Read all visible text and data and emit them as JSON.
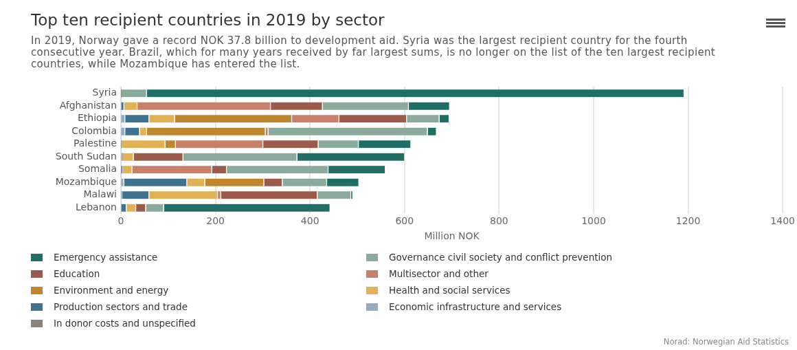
{
  "chart_data": {
    "type": "bar",
    "orientation": "horizontal",
    "stacked": true,
    "title": "Top ten recipient countries in 2019 by sector",
    "subtitle": "In 2019, Norway gave a record NOK 37.8 billion to development aid. Syria was the largest recipient country for the fourth consecutive year. Brazil, which for many years received by far largest sums, is no longer on the list of the ten largest recipient countries, while Mozambique has entered the list.",
    "xlabel": "Million NOK",
    "categories": [
      "Syria",
      "Afghanistan",
      "Ethiopia",
      "Colombia",
      "Palestine",
      "South Sudan",
      "Somalia",
      "Mozambique",
      "Malawi",
      "Lebanon"
    ],
    "series": [
      {
        "name": "In donor costs and unspecified",
        "color": "#8a8478",
        "values": [
          0,
          0,
          0,
          0,
          0,
          0,
          0,
          0,
          0,
          0
        ]
      },
      {
        "name": "Economic infrastructure and services",
        "color": "#8db0c8",
        "values": [
          0,
          0,
          9,
          9,
          0,
          3,
          0,
          7,
          3,
          0
        ]
      },
      {
        "name": "Production sectors and trade",
        "color": "#3f7290",
        "values": [
          0,
          7,
          51,
          31,
          0,
          0,
          4,
          133,
          57,
          12
        ]
      },
      {
        "name": "Health and social services",
        "color": "#e2b154",
        "values": [
          0,
          28,
          54,
          15,
          94,
          24,
          20,
          38,
          145,
          20
        ]
      },
      {
        "name": "Environment and energy",
        "color": "#c0862e",
        "values": [
          0,
          0,
          248,
          251,
          22,
          0,
          0,
          125,
          0,
          0
        ]
      },
      {
        "name": "Multisector and other",
        "color": "#c9806b",
        "values": [
          0,
          282,
          100,
          6,
          185,
          0,
          169,
          0,
          7,
          0
        ]
      },
      {
        "name": "Education",
        "color": "#9c5a4a",
        "values": [
          0,
          110,
          143,
          0,
          117,
          105,
          31,
          39,
          204,
          21
        ]
      },
      {
        "name": "Governance civil society and conflict prevention",
        "color": "#8aab9c",
        "values": [
          55,
          182,
          69,
          337,
          85,
          241,
          215,
          94,
          71,
          38
        ]
      },
      {
        "name": "Emergency assistance",
        "color": "#1f6f67",
        "values": [
          1137,
          87,
          21,
          19,
          111,
          228,
          121,
          68,
          4,
          352
        ]
      }
    ],
    "xlim": [
      0,
      1400
    ],
    "xticks": [
      0,
      200,
      400,
      600,
      800,
      1000,
      1200,
      1400
    ],
    "grid": "x",
    "legend": "bottom",
    "annotations": [
      "Norad: Norwegian Aid Statistics"
    ]
  }
}
